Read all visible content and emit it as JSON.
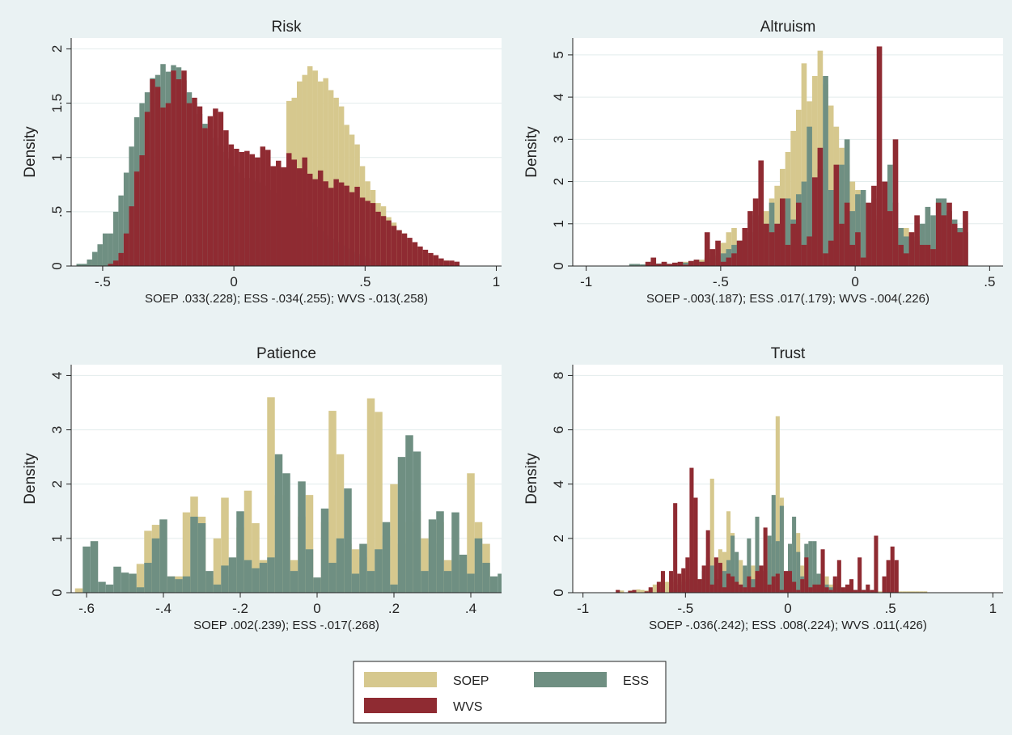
{
  "colors": {
    "soep": "#d6c88e",
    "ess": "#6f8f82",
    "wvs": "#8f2b32",
    "background": "#eaf2f3",
    "plot_bg": "#ffffff",
    "grid": "#e2ecec"
  },
  "legend": {
    "items": [
      {
        "label": "SOEP",
        "color": "#d6c88e"
      },
      {
        "label": "ESS",
        "color": "#6f8f82"
      },
      {
        "label": "WVS",
        "color": "#8f2b32"
      }
    ]
  },
  "chart_data": [
    {
      "type": "bar",
      "title": "Risk",
      "ylabel": "Density",
      "xlabel": "SOEP .033(.228); ESS -.034(.255); WVS -.013(.258)",
      "xlim": [
        -0.62,
        1.02
      ],
      "ylim": [
        0,
        2.1
      ],
      "xticks": [
        -0.5,
        0,
        0.5,
        1
      ],
      "xtick_labels": [
        "-.5",
        "0",
        ".5",
        "1"
      ],
      "yticks": [
        0,
        0.5,
        1,
        1.5,
        2
      ],
      "ytick_labels": [
        "0",
        ".5",
        "1",
        "1.5",
        "2"
      ],
      "series": [
        {
          "name": "SOEP",
          "x0": -0.6,
          "width": 0.02,
          "values": [
            0,
            0.01,
            0.05,
            0.1,
            0.03,
            0,
            0,
            0,
            0,
            0,
            0,
            0,
            0,
            0,
            0,
            0,
            0,
            0,
            0,
            0,
            0,
            0,
            0,
            0,
            0,
            0,
            0,
            0,
            0,
            0,
            0,
            0,
            0,
            0,
            0,
            0,
            0,
            0,
            0,
            0,
            1.52,
            1.55,
            1.7,
            1.76,
            1.84,
            1.8,
            1.7,
            1.73,
            1.62,
            1.55,
            1.47,
            1.3,
            1.21,
            1.12,
            0.92,
            0.78,
            0.7,
            0.58,
            0.55,
            0.45,
            0.4,
            0.33,
            0.3,
            0.22,
            0.18,
            0.15,
            0.12,
            0.1,
            0.08,
            0.05,
            0.05,
            0.03,
            0.02
          ]
        },
        {
          "name": "ESS",
          "x0": -0.6,
          "width": 0.02,
          "values": [
            0.02,
            0.02,
            0.06,
            0.13,
            0.2,
            0.3,
            0.3,
            0.5,
            0.65,
            0.86,
            1.1,
            1.37,
            1.5,
            1.6,
            1.73,
            1.76,
            1.86,
            1.79,
            1.85,
            1.83,
            1.71,
            1.6,
            1.5,
            1.4,
            1.31,
            1.26,
            1.18,
            1.11,
            1.05,
            0.99,
            0.92,
            0.86,
            0.81,
            0.81,
            0.78,
            0.77,
            0.74,
            0.7,
            0.67,
            0.62,
            0.59,
            0.55,
            0.5,
            0.45,
            0.4,
            0.36,
            0.32,
            0.28,
            0.25,
            0.22,
            0.19,
            0.16,
            0.13,
            0.11,
            0.09,
            0.07,
            0.05,
            0.04,
            0.03,
            0.02,
            0.01,
            0.01,
            0,
            0,
            0,
            0,
            0,
            0,
            0,
            0,
            0,
            0,
            0
          ]
        },
        {
          "name": "WVS",
          "x0": -0.6,
          "width": 0.02,
          "values": [
            0,
            0,
            0,
            0,
            0,
            0,
            0.02,
            0.05,
            0.12,
            0.3,
            0.55,
            0.87,
            1.02,
            1.42,
            1.72,
            1.65,
            1.46,
            1.5,
            1.8,
            1.72,
            1.8,
            1.5,
            1.55,
            1.47,
            1.27,
            1.38,
            1.45,
            1.42,
            1.25,
            1.12,
            1.08,
            1.05,
            1.06,
            1.03,
            1.0,
            1.1,
            1.07,
            0.92,
            0.97,
            0.91,
            1.04,
            0.98,
            0.9,
            1.0,
            0.85,
            0.8,
            0.88,
            0.78,
            0.72,
            0.8,
            0.77,
            0.74,
            0.68,
            0.73,
            0.63,
            0.6,
            0.58,
            0.5,
            0.46,
            0.42,
            0.37,
            0.33,
            0.3,
            0.26,
            0.22,
            0.18,
            0.15,
            0.12,
            0.1,
            0.07,
            0.05,
            0.05,
            0.04
          ]
        }
      ]
    },
    {
      "type": "bar",
      "title": "Altruism",
      "ylabel": "Density",
      "xlabel": "SOEP -.003(.187); ESS .017(.179); WVS -.004(.226)",
      "xlim": [
        -1.05,
        0.55
      ],
      "ylim": [
        0,
        5.4
      ],
      "xticks": [
        -1,
        -0.5,
        0,
        0.5
      ],
      "xtick_labels": [
        "-1",
        "-.5",
        "0",
        ".5"
      ],
      "yticks": [
        0,
        1,
        2,
        3,
        4,
        5
      ],
      "ytick_labels": [
        "0",
        "1",
        "2",
        "3",
        "4",
        "5"
      ],
      "series": [
        {
          "name": "SOEP",
          "x0": -0.84,
          "width": 0.02,
          "values": [
            0,
            0,
            0.02,
            0.02,
            0.02,
            0.03,
            0.03,
            0.05,
            0.06,
            0.08,
            0.1,
            0.1,
            0.12,
            0.15,
            0.2,
            0.3,
            0.4,
            0.55,
            0.8,
            0.9,
            0.6,
            0.5,
            0.6,
            0.8,
            1.0,
            1.3,
            1.6,
            1.9,
            2.3,
            2.7,
            3.2,
            3.7,
            4.8,
            3.9,
            4.5,
            5.1,
            4.3,
            3.8,
            3.3,
            2.8,
            2.4,
            2.0,
            1.8,
            1.5,
            1.3,
            1.2,
            1.0,
            0.9,
            0.9,
            0.8,
            0.8,
            0.9,
            0.8,
            0.7,
            0.6,
            0.6,
            0.5,
            0.4,
            0.3,
            0.3,
            0.2,
            0.2
          ]
        },
        {
          "name": "ESS",
          "x0": -0.84,
          "width": 0.02,
          "values": [
            0.05,
            0.05,
            0.04,
            0.05,
            0.04,
            0.06,
            0.08,
            0.05,
            0.07,
            0.06,
            0.08,
            0.1,
            0.15,
            0.1,
            0.2,
            0.2,
            0.25,
            0.3,
            0.4,
            0.5,
            0.6,
            0.5,
            0.8,
            1.2,
            0.9,
            1.0,
            1.5,
            1.0,
            1.3,
            1.6,
            1.1,
            1.7,
            2.0,
            3.3,
            1.5,
            2.3,
            4.5,
            1.8,
            0.5,
            2.4,
            3.0,
            1.3,
            1.7,
            1.8,
            0.5,
            1.6,
            1.1,
            1.8,
            2.4,
            1.5,
            0.9,
            0.7,
            0.7,
            0.6,
            1.0,
            1.4,
            1.2,
            1.6,
            1.6,
            1.3,
            1.1,
            0.9,
            0.8
          ]
        },
        {
          "name": "WVS",
          "x0": -0.84,
          "width": 0.02,
          "values": [
            0,
            0,
            0,
            0.1,
            0.2,
            0.05,
            0.1,
            0.05,
            0.08,
            0.1,
            0.03,
            0.12,
            0.15,
            0.1,
            0.8,
            0.4,
            0.6,
            0.1,
            0.2,
            0.3,
            0.6,
            0.9,
            1.3,
            1.6,
            2.5,
            1.0,
            0.8,
            1.0,
            1.6,
            0.5,
            1.0,
            1.5,
            0.5,
            0.7,
            2.1,
            2.8,
            0.3,
            0.6,
            2.4,
            1.0,
            1.5,
            0.5,
            0.8,
            0.2,
            1.5,
            1.9,
            5.2,
            2.0,
            1.3,
            3.0,
            0.5,
            0.3,
            0.8,
            1.2,
            0.5,
            0.5,
            0.4,
            1.5,
            1.2,
            1.5,
            1.0,
            0.8,
            1.3
          ]
        }
      ]
    },
    {
      "type": "bar",
      "title": "Patience",
      "ylabel": "Density",
      "xlabel": "SOEP .002(.239); ESS -.017(.268)",
      "xlim": [
        -0.64,
        0.48
      ],
      "ylim": [
        0,
        4.2
      ],
      "xticks": [
        -0.6,
        -0.4,
        -0.2,
        0,
        0.2,
        0.4
      ],
      "xtick_labels": [
        "-.6",
        "-.4",
        "-.2",
        "0",
        ".2",
        ".4"
      ],
      "yticks": [
        0,
        1,
        2,
        3,
        4
      ],
      "ytick_labels": [
        "0",
        "1",
        "2",
        "3",
        "4"
      ],
      "series": [
        {
          "name": "SOEP",
          "x0": -0.63,
          "width": 0.02,
          "values": [
            0.08,
            0,
            0,
            0,
            0,
            0,
            0,
            0.25,
            0.53,
            1.14,
            1.25,
            0,
            0.3,
            0.3,
            1.48,
            1.77,
            1.4,
            0.27,
            1.0,
            1.75,
            0.3,
            1.2,
            1.88,
            1.28,
            0.6,
            3.6,
            1.8,
            1.52,
            0.6,
            1.4,
            1.8,
            0.25,
            1.3,
            3.35,
            2.55,
            0.9,
            0.8,
            0.65,
            3.58,
            3.33,
            1.05,
            2.0,
            0.9,
            1.3,
            1.5,
            1.0,
            0.9,
            1.3,
            0.6,
            0.6,
            0.6,
            2.2,
            1.3,
            0.9
          ]
        },
        {
          "name": "ESS",
          "x0": -0.63,
          "width": 0.02,
          "values": [
            0,
            0.85,
            0.95,
            0.2,
            0.15,
            0.48,
            0.37,
            0.35,
            0.1,
            0.55,
            1.0,
            1.35,
            0.3,
            0.25,
            0.3,
            1.4,
            1.28,
            0.4,
            0.15,
            0.5,
            0.65,
            1.5,
            0.6,
            0.45,
            0.55,
            0.65,
            2.55,
            2.2,
            0.4,
            2.05,
            0.8,
            0.28,
            1.55,
            0.55,
            1.0,
            1.92,
            0.35,
            0.9,
            0.4,
            0.8,
            1.3,
            0.15,
            2.5,
            2.9,
            2.6,
            0.4,
            1.35,
            1.5,
            0.4,
            1.48,
            0.7,
            0.35,
            1.0,
            0.55,
            0.3,
            0.35,
            1.05,
            0.52
          ]
        }
      ]
    },
    {
      "type": "bar",
      "title": "Trust",
      "ylabel": "Density",
      "xlabel": "SOEP -.036(.242); ESS .008(.224); WVS .011(.426)",
      "xlim": [
        -1.05,
        1.05
      ],
      "ylim": [
        0,
        8.4
      ],
      "xticks": [
        -1,
        -0.5,
        0,
        0.5,
        1
      ],
      "xtick_labels": [
        "-1",
        "-.5",
        "0",
        ".5",
        "1"
      ],
      "yticks": [
        0,
        2,
        4,
        6,
        8
      ],
      "ytick_labels": [
        "0",
        "2",
        "4",
        "6",
        "8"
      ],
      "series": [
        {
          "name": "SOEP",
          "x0": -0.84,
          "width": 0.02,
          "values": [
            0.1,
            0.08,
            0,
            0.08,
            0.1,
            0.12,
            0.1,
            0.08,
            0.15,
            0.3,
            0.2,
            0.5,
            0.4,
            0.6,
            0.4,
            0.5,
            0.8,
            0.6,
            0.9,
            1.0,
            0.5,
            0.3,
            1.3,
            4.2,
            0.5,
            1.6,
            1.5,
            3.0,
            2.2,
            0.5,
            1.2,
            0.8,
            0.9,
            1.0,
            0.6,
            0.4,
            0.5,
            1.2,
            1.8,
            6.5,
            3.5,
            0.5,
            0.3,
            0.5,
            2.2,
            1.0,
            0.5,
            0.5,
            0.3,
            0.6,
            0.8,
            0.6,
            0.3,
            0.3,
            0.2,
            0.1,
            0.1,
            0.1,
            0.1,
            0.05,
            0.05,
            0.05,
            0.05,
            0.05,
            0.05,
            0.05,
            0.05,
            0.05,
            0.05,
            0.05,
            0.05,
            0.05,
            0.05,
            0.05,
            0.05,
            0.05
          ]
        },
        {
          "name": "ESS",
          "x0": -0.84,
          "width": 0.02,
          "values": [
            0,
            0,
            0,
            0,
            0,
            0,
            0,
            0,
            0,
            0,
            0,
            0,
            0,
            0.2,
            0.1,
            0.3,
            0.4,
            0.5,
            1.2,
            0.6,
            0.3,
            0.8,
            1.2,
            1.0,
            0.5,
            0.3,
            0.8,
            1.2,
            2.1,
            1.5,
            0.3,
            1.0,
            2.0,
            0.5,
            2.8,
            0.7,
            0.8,
            2.1,
            3.6,
            1.9,
            3.2,
            0.6,
            1.8,
            2.8,
            1.5,
            0.6,
            1.8,
            1.9,
            1.9,
            0.7,
            0.5,
            0.3,
            0.2,
            0.5,
            0.2,
            0.1,
            0.1,
            0.1,
            0.1,
            0.1,
            0.1,
            0.05,
            0.05,
            0.05
          ]
        },
        {
          "name": "WVS",
          "x0": -0.84,
          "width": 0.02,
          "values": [
            0.1,
            0,
            0,
            0.07,
            0.1,
            0,
            0,
            0.05,
            0.2,
            0,
            0.4,
            0.8,
            0,
            0.8,
            3.3,
            0.7,
            0.9,
            1.3,
            4.6,
            3.5,
            0.5,
            1.0,
            2.3,
            0.3,
            1.3,
            1.1,
            0.2,
            0.7,
            0.6,
            0.4,
            0.3,
            0.2,
            0.6,
            0.2,
            0.8,
            1.0,
            2.4,
            0.3,
            0.6,
            0.7,
            0.1,
            0.8,
            0.8,
            0.4,
            0.1,
            0.5,
            1.3,
            0.2,
            0.3,
            0.3,
            1.6,
            0.2,
            0.1,
            0.6,
            1.2,
            0.2,
            0.3,
            0.5,
            0.1,
            1.3,
            0.1,
            0.3,
            0.1,
            2.1,
            0,
            0.6,
            1.2,
            1.7,
            1.2
          ]
        }
      ]
    }
  ]
}
